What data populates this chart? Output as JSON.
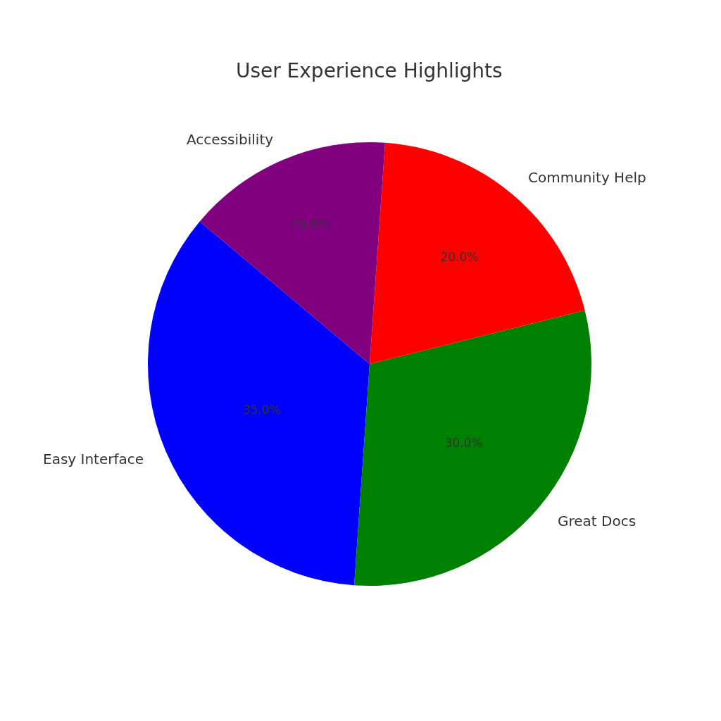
{
  "chart_data": {
    "type": "pie",
    "title": "User Experience Highlights",
    "categories": [
      "Easy Interface",
      "Great Docs",
      "Community Help",
      "Accessibility"
    ],
    "values": [
      35,
      30,
      20,
      15
    ],
    "colors": [
      "#0000ff",
      "#008000",
      "#ff0000",
      "#800080"
    ],
    "value_labels": [
      "35.0%",
      "30.0%",
      "20.0%",
      "15.0%"
    ],
    "legend": false
  }
}
